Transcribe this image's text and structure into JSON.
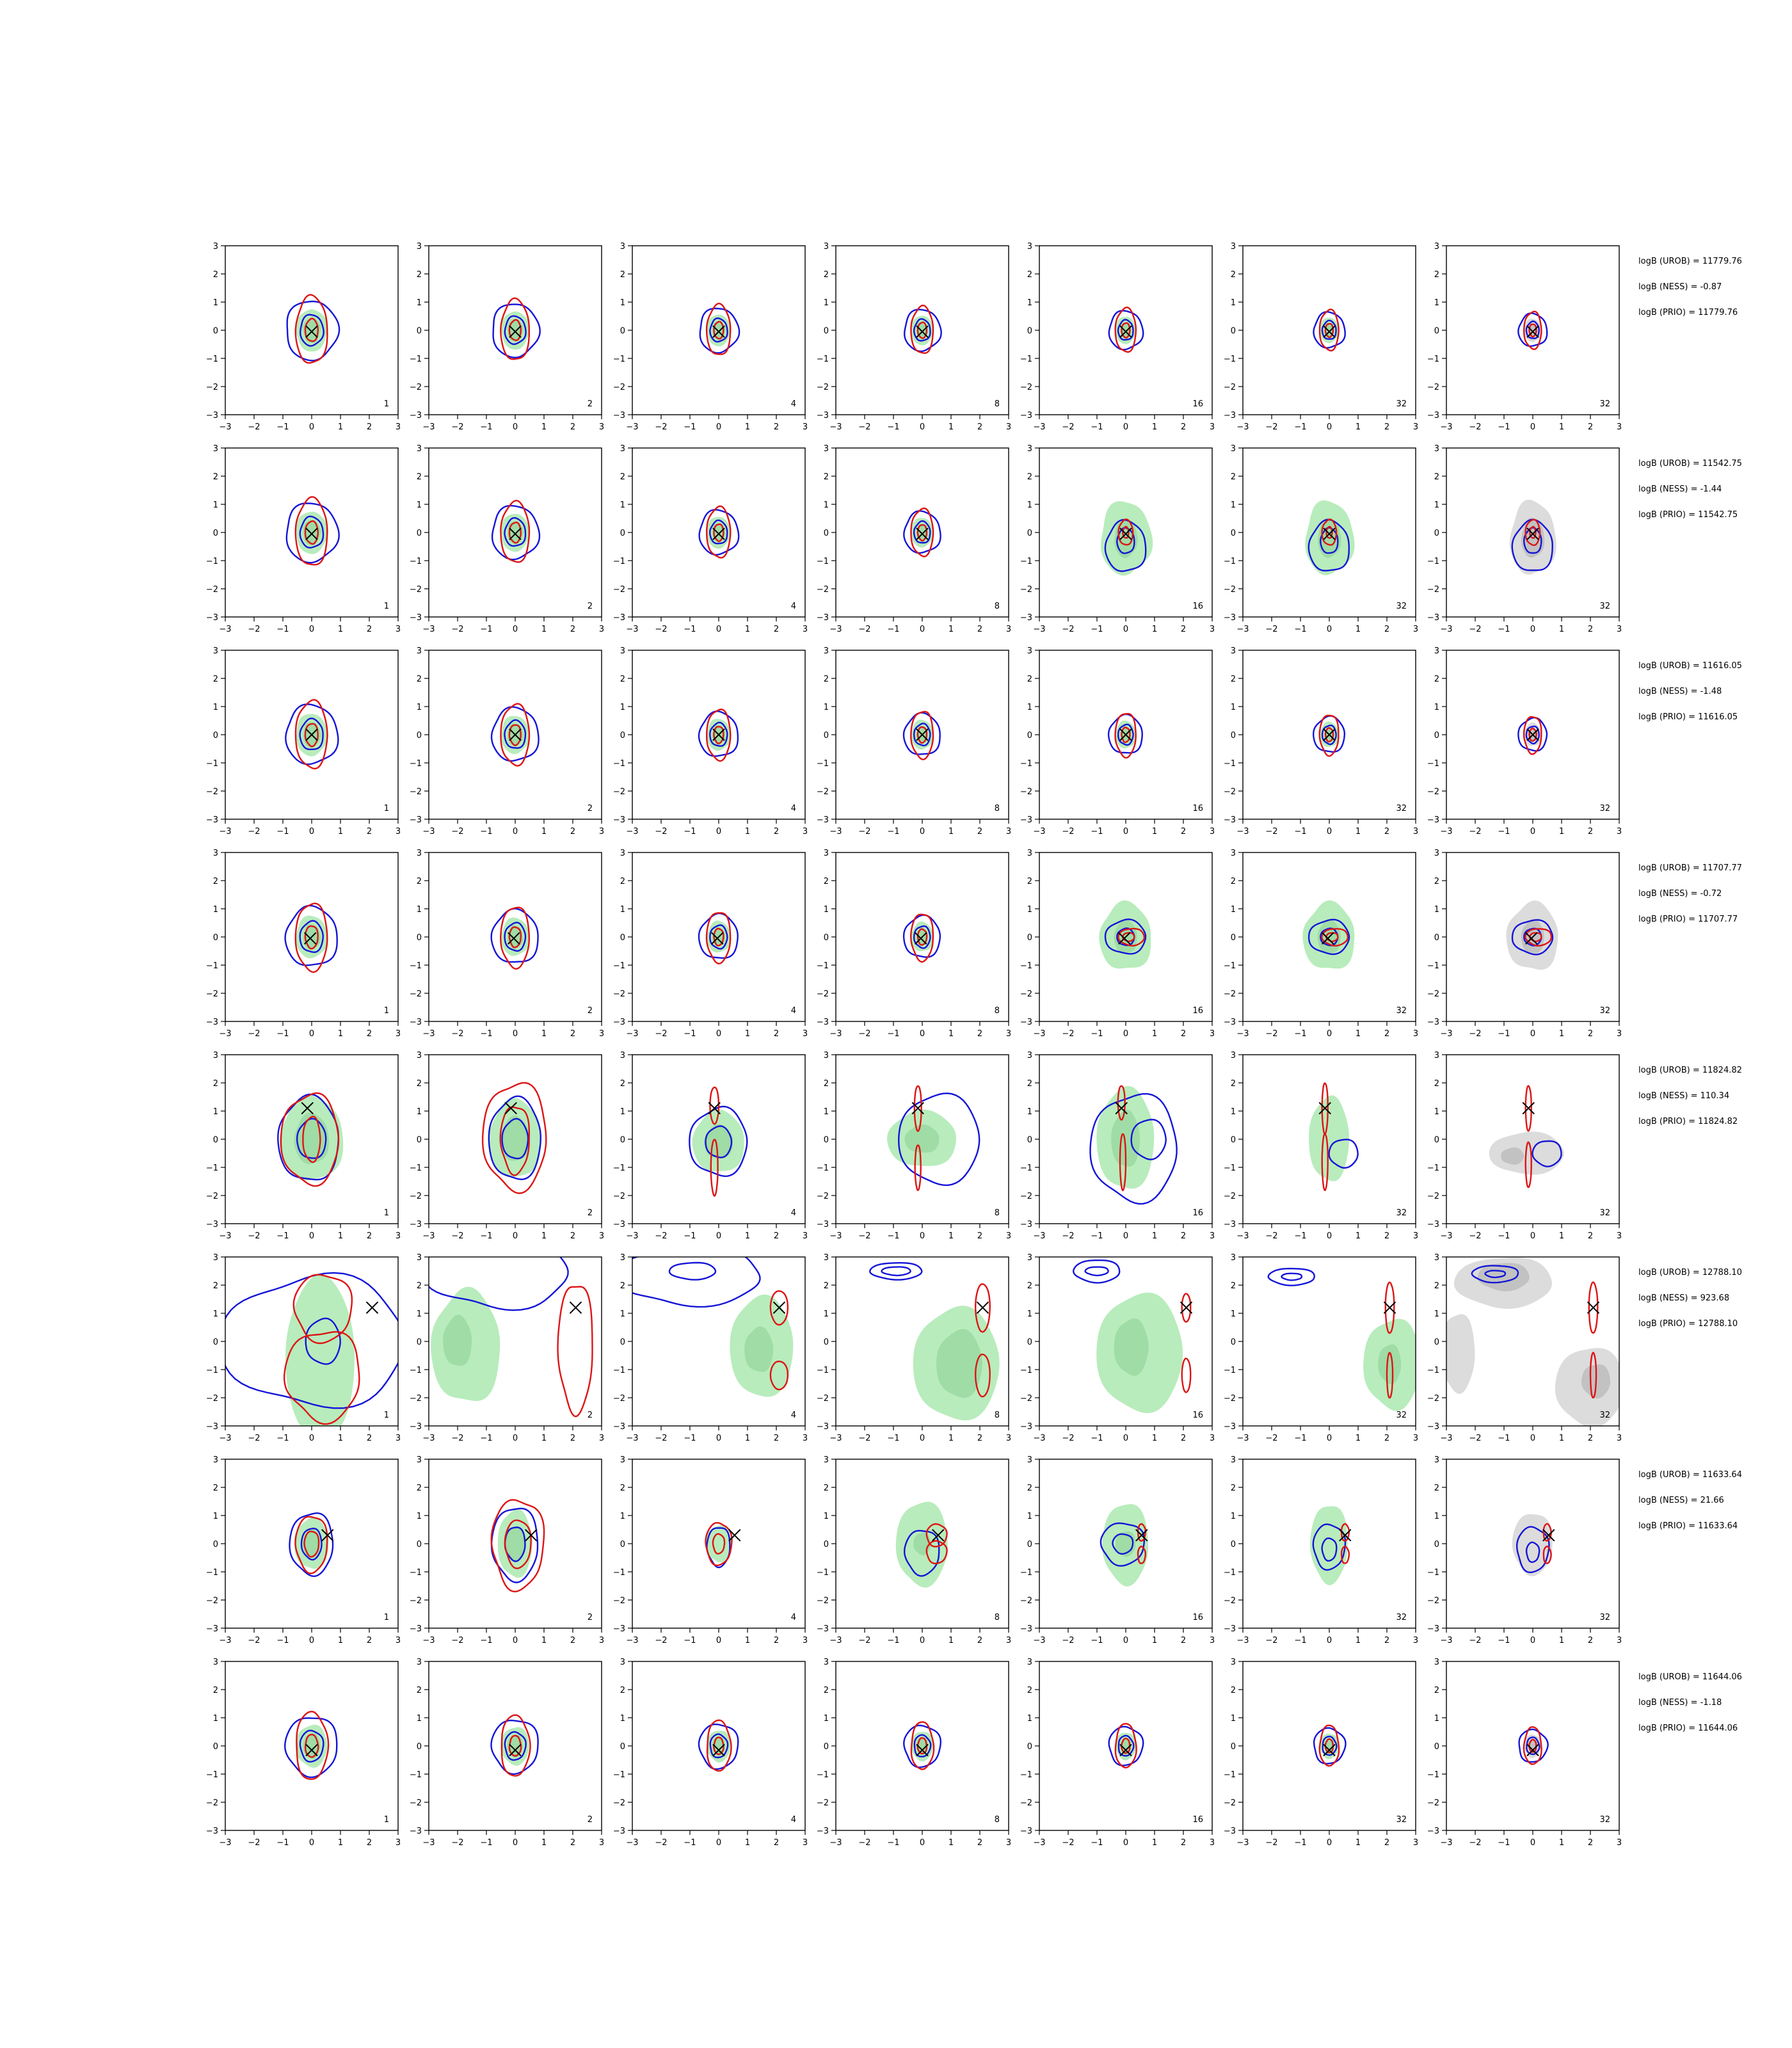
{
  "chart_data": {
    "type": "contour-grid",
    "rows": 8,
    "cols": 7,
    "xlim": [
      -3,
      3
    ],
    "ylim": [
      -3,
      3
    ],
    "ticks": [
      -3,
      -2,
      -1,
      0,
      1,
      2,
      3
    ],
    "tick_labels": [
      "−3",
      "−2",
      "−1",
      "0",
      "1",
      "2",
      "3"
    ],
    "panel_labels": [
      "1",
      "2",
      "4",
      "8",
      "16",
      "32",
      "32"
    ],
    "colors": {
      "green_fill": "#b8ecbc",
      "green_inner": "#9fdca6",
      "grey_fill": "#dcdcdc",
      "grey_inner": "#c2c2c2",
      "blue": "#1515d8",
      "red": "#dd1515",
      "marker": "#000000"
    },
    "row_stats": [
      [
        "logB (UROB) = 11779.76",
        "logB (NESS) = -0.87",
        "logB (PRIO) = 11779.76"
      ],
      [
        "logB (UROB) = 11542.75",
        "logB (NESS) = -1.44",
        "logB (PRIO) = 11542.75"
      ],
      [
        "logB (UROB) = 11616.05",
        "logB (NESS) = -1.48",
        "logB (PRIO) = 11616.05"
      ],
      [
        "logB (UROB) = 11707.77",
        "logB (NESS) = -0.72",
        "logB (PRIO) = 11707.77"
      ],
      [
        "logB (UROB) = 11824.82",
        "logB (NESS) = 110.34",
        "logB (PRIO) = 11824.82"
      ],
      [
        "logB (UROB) = 12788.10",
        "logB (NESS) = 923.68",
        "logB (PRIO) = 12788.10"
      ],
      [
        "logB (UROB) = 11633.64",
        "logB (NESS) = 21.66",
        "logB (PRIO) = 11633.64"
      ],
      [
        "logB (UROB) = 11644.06",
        "logB (NESS) = -1.18",
        "logB (PRIO) = 11644.06"
      ]
    ],
    "markers": [
      [
        0.0,
        -0.05
      ],
      [
        0.0,
        -0.05
      ],
      [
        0.0,
        0.0
      ],
      [
        -0.05,
        -0.05
      ],
      [
        -0.15,
        1.1
      ],
      [
        2.1,
        1.2
      ],
      [
        0.55,
        0.3
      ],
      [
        0.0,
        -0.15
      ]
    ]
  }
}
